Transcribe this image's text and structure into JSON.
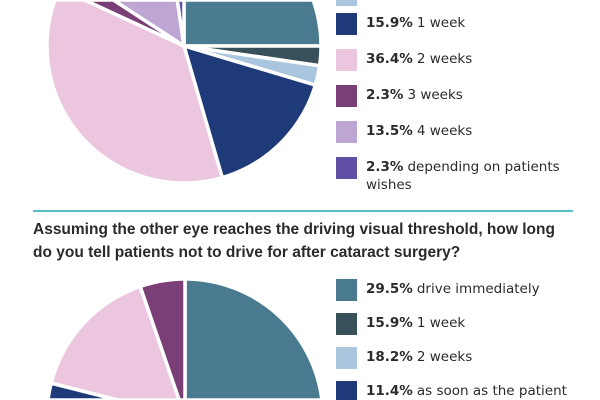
{
  "chart_data": [
    {
      "type": "pie",
      "title": "",
      "slices": [
        {
          "label": "",
          "value": 25.0,
          "color": "#4a7a8f",
          "legend_visible": false
        },
        {
          "label": "",
          "value": 2.3,
          "color": "#37505a",
          "legend_visible": false
        },
        {
          "label": "",
          "value": 2.3,
          "color": "#a9c6de",
          "legend_visible": false
        },
        {
          "label": "1 week",
          "pct": "15.9%",
          "value": 15.9,
          "color": "#1e3a78",
          "legend_visible": true
        },
        {
          "label": "2 weeks",
          "pct": "36.4%",
          "value": 36.4,
          "color": "#ebc6de",
          "legend_visible": true
        },
        {
          "label": "3 weeks",
          "pct": "2.3%",
          "value": 2.3,
          "color": "#7b3f78",
          "legend_visible": true
        },
        {
          "label": "4 weeks",
          "pct": "13.5%",
          "value": 13.5,
          "color": "#bda5d4",
          "legend_visible": true
        },
        {
          "label": "depending on patients wishes",
          "pct": "2.3%",
          "value": 2.3,
          "color": "#6250a6",
          "legend_visible": true
        }
      ]
    },
    {
      "type": "pie",
      "title": "Assuming the other eye reaches the driving visual threshold, how long do you tell patients not to drive for after cataract surgery?",
      "slices": [
        {
          "label": "drive immediately",
          "pct": "29.5%",
          "value": 29.5,
          "color": "#4a7a8f",
          "legend_visible": true
        },
        {
          "label": "1 week",
          "pct": "15.9%",
          "value": 15.9,
          "color": "#37505a",
          "legend_visible": true
        },
        {
          "label": "2 weeks",
          "pct": "18.2%",
          "value": 18.2,
          "color": "#a9c6de",
          "legend_visible": true
        },
        {
          "label": "as soon as the patient",
          "pct": "11.4%",
          "value": 11.4,
          "color": "#1e3a78",
          "legend_visible": true
        },
        {
          "label": "",
          "value": 15.0,
          "color": "#ebc6de",
          "legend_visible": false
        },
        {
          "label": "",
          "value": 5.0,
          "color": "#7b3f78",
          "legend_visible": false
        }
      ]
    }
  ],
  "divider_color": "#5bbcc4"
}
